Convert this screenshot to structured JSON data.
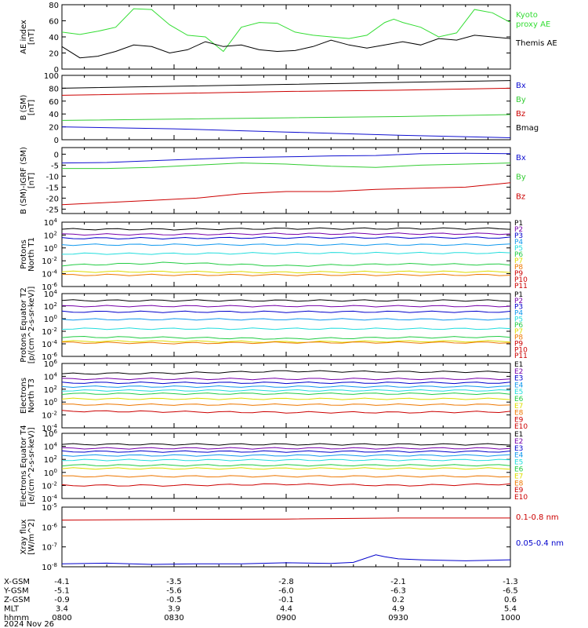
{
  "date_label": "2024 Nov 26",
  "ephemeris": {
    "rows": [
      {
        "label": "X-GSM",
        "values": [
          "-4.1",
          "-3.5",
          "-2.8",
          "-2.1",
          "-1.3"
        ]
      },
      {
        "label": "Y-GSM",
        "values": [
          "-5.1",
          "-5.6",
          "-6.0",
          "-6.3",
          "-6.5"
        ]
      },
      {
        "label": "Z-GSM",
        "values": [
          "-0.9",
          "-0.5",
          "-0.1",
          "0.2",
          "0.6"
        ]
      },
      {
        "label": "MLT",
        "values": [
          "3.4",
          "3.9",
          "4.4",
          "4.9",
          "5.4"
        ]
      },
      {
        "label": "hhmm",
        "values": [
          "0800",
          "0830",
          "0900",
          "0930",
          "1000"
        ]
      }
    ]
  },
  "chart_data": [
    {
      "type": "line",
      "id": "ae",
      "ylabel": "AE index [nT]",
      "ylim": [
        0,
        80
      ],
      "yticks": [
        "0",
        "20",
        "40",
        "60",
        "80"
      ],
      "series": [
        {
          "name": "Kyoto proxy AE",
          "color": "#33dd33",
          "x": [
            0,
            0.04,
            0.08,
            0.12,
            0.16,
            0.2,
            0.24,
            0.28,
            0.32,
            0.36,
            0.4,
            0.44,
            0.48,
            0.52,
            0.56,
            0.6,
            0.64,
            0.68,
            0.72,
            0.74,
            0.76,
            0.8,
            0.84,
            0.88,
            0.92,
            0.96,
            1.0
          ],
          "values": [
            46,
            43,
            47,
            52,
            75,
            74,
            55,
            42,
            40,
            22,
            52,
            58,
            57,
            46,
            42,
            40,
            38,
            42,
            58,
            62,
            58,
            52,
            40,
            45,
            74,
            70,
            58
          ]
        },
        {
          "name": "Themis AE",
          "color": "#000000",
          "x": [
            0,
            0.04,
            0.08,
            0.12,
            0.16,
            0.2,
            0.24,
            0.28,
            0.32,
            0.36,
            0.4,
            0.44,
            0.48,
            0.52,
            0.56,
            0.6,
            0.64,
            0.68,
            0.72,
            0.76,
            0.8,
            0.84,
            0.88,
            0.92,
            0.96,
            1.0
          ],
          "values": [
            28,
            14,
            16,
            22,
            30,
            28,
            20,
            24,
            34,
            28,
            30,
            24,
            22,
            23,
            28,
            36,
            30,
            26,
            30,
            34,
            30,
            38,
            36,
            42,
            40,
            38
          ]
        }
      ]
    },
    {
      "type": "line",
      "id": "b",
      "ylabel": "B (SM) [nT]",
      "ylim": [
        0,
        100
      ],
      "yticks": [
        "0",
        "20",
        "40",
        "60",
        "80",
        "100"
      ],
      "series": [
        {
          "name": "Bx",
          "color": "#1010d0",
          "x": [
            0,
            0.25,
            0.5,
            0.75,
            1.0
          ],
          "values": [
            20,
            17,
            12,
            7,
            3
          ]
        },
        {
          "name": "By",
          "color": "#33cc33",
          "x": [
            0,
            0.25,
            0.5,
            0.75,
            1.0
          ],
          "values": [
            30,
            32,
            34,
            36,
            39
          ]
        },
        {
          "name": "Bz",
          "color": "#cc0000",
          "x": [
            0,
            0.25,
            0.5,
            0.75,
            1.0
          ],
          "values": [
            69,
            72,
            75,
            77,
            80
          ]
        },
        {
          "name": "Bmag",
          "color": "#000000",
          "x": [
            0,
            0.25,
            0.5,
            0.75,
            1.0
          ],
          "values": [
            80,
            83,
            86,
            89,
            92
          ]
        }
      ]
    },
    {
      "type": "line",
      "id": "bdiff",
      "ylabel": "B (SM)-IGRF (SM) [nT]",
      "ylim": [
        -27,
        3
      ],
      "yticks": [
        "-25",
        "-20",
        "-15",
        "-10",
        "-5",
        "0"
      ],
      "series": [
        {
          "name": "Bx",
          "color": "#1010d0",
          "x": [
            0,
            0.1,
            0.2,
            0.3,
            0.4,
            0.5,
            0.6,
            0.7,
            0.8,
            0.9,
            1.0
          ],
          "values": [
            -4,
            -3.8,
            -3,
            -2.2,
            -1.5,
            -1.2,
            -0.8,
            -0.6,
            0.2,
            0.4,
            0.2
          ]
        },
        {
          "name": "By",
          "color": "#33cc33",
          "x": [
            0,
            0.1,
            0.2,
            0.3,
            0.4,
            0.5,
            0.6,
            0.7,
            0.8,
            0.9,
            1.0
          ],
          "values": [
            -6.5,
            -6.5,
            -6,
            -5,
            -4,
            -4.5,
            -5.5,
            -6,
            -5,
            -4.5,
            -4
          ]
        },
        {
          "name": "Bz",
          "color": "#cc0000",
          "x": [
            0,
            0.1,
            0.2,
            0.3,
            0.4,
            0.5,
            0.6,
            0.7,
            0.8,
            0.9,
            1.0
          ],
          "values": [
            -23,
            -22,
            -21,
            -20,
            -18,
            -17,
            -17,
            -16,
            -15.5,
            -15,
            -13
          ]
        }
      ]
    },
    {
      "type": "line",
      "id": "p_north",
      "ylabel": "Protons North T1",
      "log": true,
      "ylim": [
        -6,
        4
      ],
      "yticks": [
        "10^-6",
        "10^-4",
        "10^-2",
        "10^0",
        "10^2",
        "10^4"
      ],
      "channels": [
        "P1",
        "P2",
        "P3",
        "P4",
        "P5",
        "P6",
        "P7",
        "P8",
        "P9",
        "P10",
        "P11"
      ],
      "series": [
        {
          "name": "P1",
          "color": "#000000",
          "levels": [
            2.9,
            2.9,
            3.0,
            3.0,
            3.0
          ]
        },
        {
          "name": "P2",
          "color": "#7700aa",
          "levels": [
            2.1,
            2.1,
            2.2,
            2.2,
            2.2
          ]
        },
        {
          "name": "P3",
          "color": "#0000cc",
          "levels": [
            1.5,
            1.5,
            1.6,
            1.6,
            1.6
          ]
        },
        {
          "name": "P4",
          "color": "#1199ee",
          "levels": [
            0.5,
            0.5,
            0.5,
            0.5,
            0.5
          ]
        },
        {
          "name": "P5",
          "color": "#22dddd",
          "levels": [
            -0.9,
            -0.9,
            -0.8,
            -0.8,
            -0.8
          ]
        },
        {
          "name": "P6",
          "color": "#22cc44",
          "levels": [
            -2.7,
            -2.3,
            -2.8,
            -2.5,
            -2.6
          ]
        },
        {
          "name": "P7",
          "color": "#dddd00",
          "levels": [
            -3.7,
            -3.7,
            -3.8,
            -3.7,
            -3.7
          ]
        },
        {
          "name": "P9",
          "color": "#ee7700",
          "levels": [
            -4.2,
            -4.2,
            -4.2,
            -4.2,
            -4.2
          ]
        }
      ]
    },
    {
      "type": "line",
      "id": "p_equator",
      "ylabel": "Protons Equator T2 [p/(cm^2-s-sr-keV)]",
      "log": true,
      "ylim": [
        -6,
        4
      ],
      "yticks": [
        "10^-6",
        "10^-4",
        "10^-2",
        "10^0",
        "10^2",
        "10^4"
      ],
      "channels": [
        "P1",
        "P2",
        "P3",
        "P4",
        "P5",
        "P6",
        "P7",
        "P8",
        "P9",
        "P10",
        "P11"
      ],
      "series": [
        {
          "name": "P1",
          "color": "#000000",
          "levels": [
            2.9,
            2.9,
            2.9,
            2.9,
            2.9
          ]
        },
        {
          "name": "P2",
          "color": "#7700aa",
          "levels": [
            2.0,
            2.0,
            2.0,
            2.0,
            2.0
          ]
        },
        {
          "name": "P3",
          "color": "#0000cc",
          "levels": [
            1.1,
            1.1,
            1.1,
            1.1,
            1.1
          ]
        },
        {
          "name": "P4",
          "color": "#1199ee",
          "levels": [
            -0.1,
            -0.1,
            -0.1,
            -0.1,
            -0.1
          ]
        },
        {
          "name": "P5",
          "color": "#22dddd",
          "levels": [
            -1.6,
            -1.6,
            -1.6,
            -1.6,
            -1.6
          ]
        },
        {
          "name": "P6",
          "color": "#22cc44",
          "levels": [
            -2.9,
            -3.0,
            -3.2,
            -3.0,
            -2.9
          ]
        },
        {
          "name": "P7",
          "color": "#dddd00",
          "levels": [
            -3.6,
            -3.6,
            -3.7,
            -3.6,
            -3.6
          ]
        },
        {
          "name": "P9",
          "color": "#ee7700",
          "levels": [
            -3.8,
            -3.9,
            -3.8,
            -3.8,
            -3.8
          ]
        }
      ]
    },
    {
      "type": "line",
      "id": "e_north",
      "ylabel": "Electrons North T3",
      "log": true,
      "ylim": [
        -4,
        6
      ],
      "yticks": [
        "10^-4",
        "10^-2",
        "10^0",
        "10^2",
        "10^4",
        "10^6"
      ],
      "channels": [
        "E1",
        "E2",
        "E3",
        "E4",
        "E5",
        "E6",
        "E7",
        "E8",
        "E9",
        "E10"
      ],
      "series": [
        {
          "name": "E1",
          "color": "#000000",
          "levels": [
            4.4,
            4.5,
            4.8,
            4.7,
            4.7
          ]
        },
        {
          "name": "E2",
          "color": "#7700aa",
          "levels": [
            3.6,
            3.6,
            3.6,
            3.6,
            3.6
          ]
        },
        {
          "name": "E3",
          "color": "#0000cc",
          "levels": [
            3.0,
            3.0,
            3.0,
            3.0,
            3.0
          ]
        },
        {
          "name": "E4",
          "color": "#1199ee",
          "levels": [
            2.4,
            2.4,
            2.4,
            2.4,
            2.4
          ]
        },
        {
          "name": "E5",
          "color": "#22dddd",
          "levels": [
            1.8,
            1.8,
            1.8,
            1.8,
            1.8
          ]
        },
        {
          "name": "E6",
          "color": "#22cc44",
          "levels": [
            1.3,
            1.3,
            1.3,
            1.3,
            1.3
          ]
        },
        {
          "name": "E7",
          "color": "#dddd00",
          "levels": [
            0.5,
            0.5,
            0.5,
            0.5,
            0.5
          ]
        },
        {
          "name": "E8",
          "color": "#ee7700",
          "levels": [
            -0.4,
            -0.4,
            -0.4,
            -0.4,
            -0.4
          ]
        },
        {
          "name": "E9",
          "color": "#cc0000",
          "levels": [
            -1.4,
            -1.5,
            -1.6,
            -1.6,
            -1.5
          ]
        }
      ]
    },
    {
      "type": "line",
      "id": "e_equator",
      "ylabel": "Electrons Equator T4 [e/(cm^2-s-sr-keV)]",
      "log": true,
      "ylim": [
        -4,
        6
      ],
      "yticks": [
        "10^-4",
        "10^-2",
        "10^0",
        "10^2",
        "10^4",
        "10^6"
      ],
      "channels": [
        "E1",
        "E2",
        "E3",
        "E4",
        "E5",
        "E6",
        "E7",
        "E8",
        "E9",
        "E10"
      ],
      "series": [
        {
          "name": "E1",
          "color": "#000000",
          "levels": [
            4.3,
            4.3,
            4.3,
            4.3,
            4.3
          ]
        },
        {
          "name": "E2",
          "color": "#7700aa",
          "levels": [
            3.7,
            3.7,
            3.7,
            3.7,
            3.7
          ]
        },
        {
          "name": "E3",
          "color": "#0000cc",
          "levels": [
            3.2,
            3.2,
            3.2,
            3.2,
            3.2
          ]
        },
        {
          "name": "E4",
          "color": "#1199ee",
          "levels": [
            2.6,
            2.6,
            2.6,
            2.6,
            2.6
          ]
        },
        {
          "name": "E5",
          "color": "#22dddd",
          "levels": [
            1.9,
            1.9,
            1.9,
            1.9,
            1.9
          ]
        },
        {
          "name": "E6",
          "color": "#22cc44",
          "levels": [
            1.1,
            1.1,
            1.1,
            1.1,
            1.1
          ]
        },
        {
          "name": "E7",
          "color": "#dddd00",
          "levels": [
            0.6,
            0.6,
            0.6,
            0.6,
            0.6
          ]
        },
        {
          "name": "E8",
          "color": "#ee7700",
          "levels": [
            -0.6,
            -0.6,
            -0.6,
            -0.6,
            -0.6
          ]
        },
        {
          "name": "E9",
          "color": "#cc0000",
          "levels": [
            -2.0,
            -2.0,
            -1.8,
            -2.0,
            -1.8
          ]
        }
      ]
    },
    {
      "type": "line",
      "id": "xray",
      "ylabel": "Xray flux [W/m^2]",
      "log": true,
      "ylim": [
        -8,
        -5
      ],
      "yticks": [
        "10^-8",
        "10^-7",
        "10^-6",
        "10^-5"
      ],
      "series": [
        {
          "name": "0.1-0.8 nm",
          "color": "#cc0000",
          "x": [
            0,
            0.25,
            0.5,
            0.75,
            1.0
          ],
          "values": [
            -5.65,
            -5.62,
            -5.6,
            -5.55,
            -5.55
          ]
        },
        {
          "name": "0.05-0.4 nm",
          "color": "#0000cc",
          "x": [
            0,
            0.1,
            0.2,
            0.3,
            0.4,
            0.5,
            0.6,
            0.65,
            0.7,
            0.72,
            0.75,
            0.8,
            0.9,
            1.0
          ],
          "values": [
            -7.85,
            -7.82,
            -7.88,
            -7.85,
            -7.85,
            -7.8,
            -7.83,
            -7.78,
            -7.4,
            -7.5,
            -7.6,
            -7.65,
            -7.7,
            -7.65
          ]
        }
      ]
    }
  ]
}
